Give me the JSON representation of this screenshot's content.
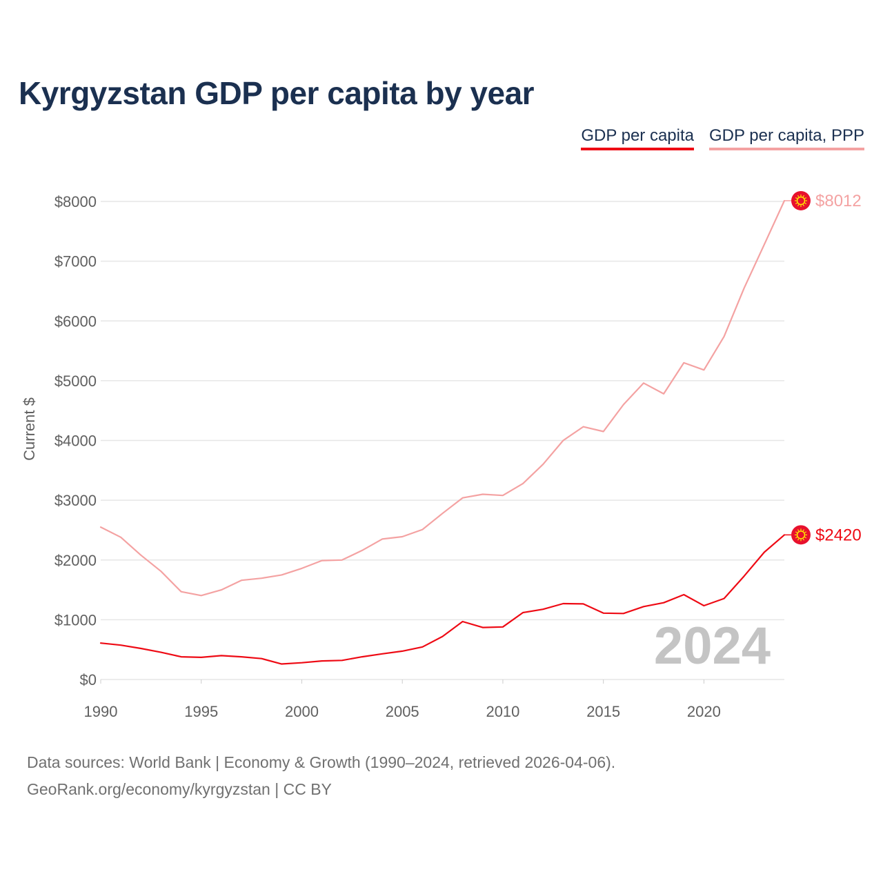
{
  "title": "Kyrgyzstan GDP per capita by year",
  "legend": {
    "gdp": "GDP per capita",
    "ppp": "GDP per capita, PPP"
  },
  "watermark_year": "2024",
  "footer": {
    "line1": "Data sources: World Bank | Economy & Growth (1990–2024, retrieved 2026-04-06).",
    "line2": "GeoRank.org/economy/kyrgyzstan | CC BY"
  },
  "colors": {
    "gdp": "#ee0a14",
    "ppp": "#f4a2a2",
    "grid": "#e6e6e6",
    "flag": "#e8112d",
    "flag_sun": "#ffef00"
  },
  "chart_data": {
    "type": "line",
    "ylabel": "Current $",
    "xlabel": "",
    "xlim": [
      1990,
      2024
    ],
    "ylim": [
      0,
      8000
    ],
    "x_ticks": [
      1990,
      1995,
      2000,
      2005,
      2010,
      2015,
      2020
    ],
    "y_ticks": [
      0,
      1000,
      2000,
      3000,
      4000,
      5000,
      6000,
      7000,
      8000
    ],
    "y_tick_labels": [
      "$0",
      "$1000",
      "$2000",
      "$3000",
      "$4000",
      "$5000",
      "$6000",
      "$7000",
      "$8000"
    ],
    "x": [
      1990,
      1991,
      1992,
      1993,
      1994,
      1995,
      1996,
      1997,
      1998,
      1999,
      2000,
      2001,
      2002,
      2003,
      2004,
      2005,
      2006,
      2007,
      2008,
      2009,
      2010,
      2011,
      2012,
      2013,
      2014,
      2015,
      2016,
      2017,
      2018,
      2019,
      2020,
      2021,
      2022,
      2023,
      2024
    ],
    "series": [
      {
        "name": "GDP per capita",
        "key": "gdp",
        "end_label": "$2420",
        "values": [
          610,
          575,
          520,
          455,
          380,
          370,
          400,
          380,
          350,
          260,
          280,
          310,
          320,
          380,
          430,
          475,
          545,
          720,
          970,
          870,
          880,
          1120,
          1175,
          1270,
          1265,
          1110,
          1105,
          1220,
          1285,
          1420,
          1235,
          1355,
          1730,
          2130,
          2420
        ]
      },
      {
        "name": "GDP per capita, PPP",
        "key": "ppp",
        "end_label": "$8012",
        "values": [
          2550,
          2380,
          2080,
          1810,
          1470,
          1405,
          1500,
          1660,
          1695,
          1750,
          1860,
          1990,
          2000,
          2160,
          2350,
          2390,
          2510,
          2780,
          3040,
          3100,
          3080,
          3280,
          3600,
          4000,
          4230,
          4150,
          4600,
          4960,
          4780,
          5300,
          5180,
          5740,
          6550,
          7280,
          8012
        ]
      }
    ]
  }
}
